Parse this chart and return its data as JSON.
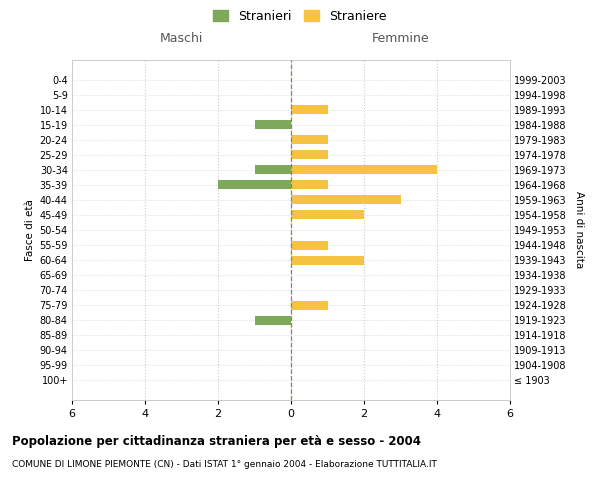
{
  "age_groups": [
    "100+",
    "95-99",
    "90-94",
    "85-89",
    "80-84",
    "75-79",
    "70-74",
    "65-69",
    "60-64",
    "55-59",
    "50-54",
    "45-49",
    "40-44",
    "35-39",
    "30-34",
    "25-29",
    "20-24",
    "15-19",
    "10-14",
    "5-9",
    "0-4"
  ],
  "birth_years": [
    "≤ 1903",
    "1904-1908",
    "1909-1913",
    "1914-1918",
    "1919-1923",
    "1924-1928",
    "1929-1933",
    "1934-1938",
    "1939-1943",
    "1944-1948",
    "1949-1953",
    "1954-1958",
    "1959-1963",
    "1964-1968",
    "1969-1973",
    "1974-1978",
    "1979-1983",
    "1984-1988",
    "1989-1993",
    "1994-1998",
    "1999-2003"
  ],
  "maschi": [
    0,
    0,
    0,
    0,
    1,
    0,
    0,
    0,
    0,
    0,
    0,
    0,
    0,
    2,
    1,
    0,
    0,
    1,
    0,
    0,
    0
  ],
  "femmine": [
    0,
    0,
    0,
    0,
    0,
    1,
    0,
    0,
    2,
    1,
    0,
    2,
    3,
    1,
    4,
    1,
    1,
    0,
    1,
    0,
    0
  ],
  "maschi_color": "#7ea85a",
  "femmine_color": "#f5c242",
  "title": "Popolazione per cittadinanza straniera per età e sesso - 2004",
  "subtitle": "COMUNE DI LIMONE PIEMONTE (CN) - Dati ISTAT 1° gennaio 2004 - Elaborazione TUTTITALIA.IT",
  "left_label": "Maschi",
  "right_label": "Femmine",
  "ylabel_left": "Fasce di età",
  "ylabel_right": "Anni di nascita",
  "legend_maschi": "Stranieri",
  "legend_femmine": "Straniere",
  "xlim": 6,
  "background_color": "#ffffff",
  "grid_color": "#cccccc",
  "spine_color": "#cccccc",
  "center_line_color": "#888855"
}
